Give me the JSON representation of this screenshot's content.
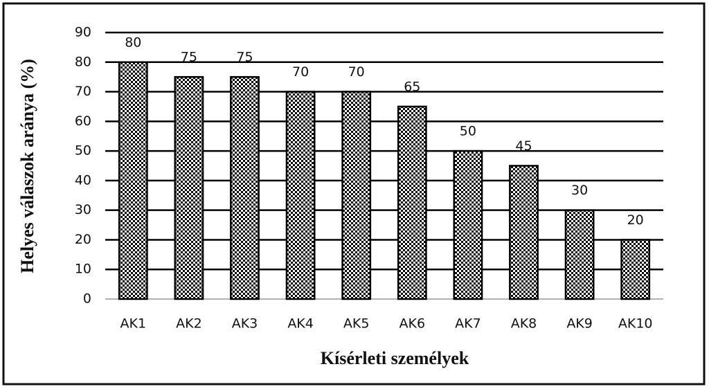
{
  "chart_data": {
    "type": "bar",
    "categories": [
      "AK1",
      "AK2",
      "AK3",
      "AK4",
      "AK5",
      "AK6",
      "AK7",
      "AK8",
      "AK9",
      "AK10"
    ],
    "values": [
      80,
      75,
      75,
      70,
      70,
      65,
      50,
      45,
      30,
      20
    ],
    "color": "#000000",
    "x_label": "Kísérleti személyek",
    "y_label": "Helyes válaszok aránya (%)",
    "ylim": [
      0,
      90
    ],
    "yticks": [
      0,
      10,
      20,
      30,
      40,
      50,
      60,
      70,
      80,
      90
    ],
    "grid": true
  }
}
